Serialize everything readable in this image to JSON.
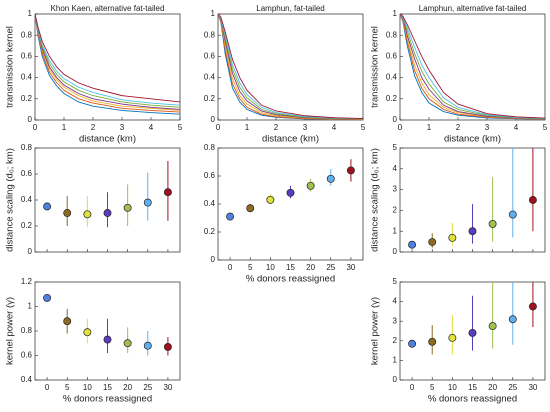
{
  "chart_data": [
    {
      "type": "line",
      "title": "Khon Kaen, alternative fat-tailed",
      "xlabel": "distance (km)",
      "ylabel": "transmission kernel",
      "x": [
        0,
        0.1,
        0.25,
        0.5,
        0.75,
        1,
        1.5,
        2,
        3,
        4,
        5
      ],
      "xlim": [
        0,
        5
      ],
      "xticks": [
        0,
        1,
        2,
        3,
        4,
        5
      ],
      "ylim": [
        0,
        1
      ],
      "yticks": [
        0,
        0.2,
        0.4,
        0.6,
        0.8,
        1
      ],
      "series": [
        {
          "color": "#0072bd",
          "values": [
            1,
            0.8,
            0.6,
            0.42,
            0.32,
            0.25,
            0.17,
            0.13,
            0.09,
            0.07,
            0.055
          ]
        },
        {
          "color": "#d95319",
          "values": [
            1,
            0.82,
            0.63,
            0.45,
            0.35,
            0.28,
            0.2,
            0.16,
            0.11,
            0.09,
            0.075
          ]
        },
        {
          "color": "#edb120",
          "values": [
            1,
            0.83,
            0.65,
            0.48,
            0.38,
            0.31,
            0.23,
            0.18,
            0.13,
            0.11,
            0.09
          ]
        },
        {
          "color": "#7e2f8e",
          "values": [
            1,
            0.84,
            0.67,
            0.5,
            0.4,
            0.33,
            0.25,
            0.2,
            0.15,
            0.12,
            0.1
          ]
        },
        {
          "color": "#77ac30",
          "values": [
            1,
            0.85,
            0.69,
            0.53,
            0.43,
            0.36,
            0.28,
            0.23,
            0.17,
            0.14,
            0.12
          ]
        },
        {
          "color": "#4dbeee",
          "values": [
            1,
            0.86,
            0.71,
            0.56,
            0.46,
            0.39,
            0.31,
            0.26,
            0.19,
            0.16,
            0.14
          ]
        },
        {
          "color": "#a2142f",
          "values": [
            1,
            0.88,
            0.74,
            0.6,
            0.5,
            0.43,
            0.35,
            0.3,
            0.23,
            0.2,
            0.17
          ]
        }
      ]
    },
    {
      "type": "line",
      "title": "Lamphun, fat-tailed",
      "xlabel": "distance (km)",
      "x": [
        0,
        0.1,
        0.25,
        0.5,
        0.75,
        1,
        1.5,
        2,
        3,
        4,
        5
      ],
      "xlim": [
        0,
        5
      ],
      "xticks": [
        0,
        1,
        2,
        3,
        4,
        5
      ],
      "ylim": [
        0,
        1
      ],
      "yticks": [
        0,
        0.2,
        0.4,
        0.6,
        0.8,
        1
      ],
      "series": [
        {
          "color": "#0072bd",
          "values": [
            1,
            0.92,
            0.62,
            0.3,
            0.17,
            0.1,
            0.045,
            0.025,
            0.01,
            0.005,
            0.003
          ]
        },
        {
          "color": "#d95319",
          "values": [
            1,
            0.93,
            0.66,
            0.34,
            0.2,
            0.12,
            0.055,
            0.03,
            0.013,
            0.007,
            0.004
          ]
        },
        {
          "color": "#edb120",
          "values": [
            1,
            0.94,
            0.7,
            0.39,
            0.23,
            0.15,
            0.07,
            0.04,
            0.017,
            0.01,
            0.006
          ]
        },
        {
          "color": "#7e2f8e",
          "values": [
            1,
            0.95,
            0.74,
            0.44,
            0.27,
            0.18,
            0.085,
            0.05,
            0.022,
            0.012,
            0.008
          ]
        },
        {
          "color": "#77ac30",
          "values": [
            1,
            0.96,
            0.77,
            0.48,
            0.31,
            0.21,
            0.1,
            0.06,
            0.027,
            0.015,
            0.01
          ]
        },
        {
          "color": "#4dbeee",
          "values": [
            1,
            0.96,
            0.8,
            0.52,
            0.35,
            0.24,
            0.12,
            0.07,
            0.032,
            0.018,
            0.012
          ]
        },
        {
          "color": "#a2142f",
          "values": [
            1,
            0.97,
            0.83,
            0.57,
            0.4,
            0.28,
            0.14,
            0.085,
            0.04,
            0.022,
            0.014
          ]
        }
      ]
    },
    {
      "type": "line",
      "title": "Lamphun, alternative fat-tailed",
      "xlabel": "distance (km)",
      "ylabel": "transmission kernel",
      "x": [
        0,
        0.1,
        0.25,
        0.5,
        0.75,
        1,
        1.5,
        2,
        3,
        4,
        5
      ],
      "xlim": [
        0,
        5
      ],
      "xticks": [
        0,
        1,
        2,
        3,
        4,
        5
      ],
      "ylim": [
        0,
        1
      ],
      "yticks": [
        0,
        0.2,
        0.4,
        0.6,
        0.8,
        1
      ],
      "series": [
        {
          "color": "#0072bd",
          "values": [
            1,
            0.93,
            0.7,
            0.42,
            0.26,
            0.16,
            0.08,
            0.045,
            0.02,
            0.012,
            0.008
          ]
        },
        {
          "color": "#d95319",
          "values": [
            1,
            0.94,
            0.74,
            0.47,
            0.3,
            0.2,
            0.1,
            0.055,
            0.025,
            0.014,
            0.009
          ]
        },
        {
          "color": "#edb120",
          "values": [
            1,
            0.95,
            0.77,
            0.52,
            0.35,
            0.24,
            0.12,
            0.07,
            0.03,
            0.016,
            0.01
          ]
        },
        {
          "color": "#7e2f8e",
          "values": [
            1,
            0.96,
            0.8,
            0.58,
            0.4,
            0.29,
            0.14,
            0.08,
            0.035,
            0.018,
            0.011
          ]
        },
        {
          "color": "#77ac30",
          "values": [
            1,
            0.97,
            0.84,
            0.63,
            0.46,
            0.34,
            0.17,
            0.1,
            0.043,
            0.022,
            0.013
          ]
        },
        {
          "color": "#4dbeee",
          "values": [
            1,
            0.97,
            0.87,
            0.69,
            0.52,
            0.4,
            0.21,
            0.12,
            0.05,
            0.026,
            0.015
          ]
        },
        {
          "color": "#a2142f",
          "values": [
            1,
            0.98,
            0.9,
            0.75,
            0.6,
            0.47,
            0.26,
            0.15,
            0.06,
            0.03,
            0.018
          ]
        }
      ]
    },
    {
      "type": "scatter",
      "ylabel": "distance scaling (d₀; km)",
      "xtick_labels": false,
      "x": [
        0,
        5,
        10,
        15,
        20,
        25,
        30
      ],
      "xlim": [
        -3,
        33
      ],
      "xticks": [
        0,
        5,
        10,
        15,
        20,
        25,
        30
      ],
      "ylim": [
        0,
        0.8
      ],
      "yticks": [
        0,
        0.2,
        0.4,
        0.6,
        0.8
      ],
      "colors": [
        "#4f81e0",
        "#8c6a20",
        "#e0e040",
        "#5a3cc0",
        "#a0c050",
        "#60b0f0",
        "#a01020"
      ],
      "values": [
        0.35,
        0.3,
        0.29,
        0.3,
        0.34,
        0.38,
        0.46
      ],
      "lower": [
        0.33,
        0.2,
        0.19,
        0.19,
        0.2,
        0.24,
        0.24
      ],
      "upper": [
        0.38,
        0.43,
        0.43,
        0.46,
        0.52,
        0.61,
        0.7
      ]
    },
    {
      "type": "scatter",
      "ylabel": "kernel power (γ)",
      "xlabel": "% donors reassigned",
      "x": [
        0,
        5,
        10,
        15,
        20,
        25,
        30
      ],
      "xlim": [
        -3,
        33
      ],
      "xticks": [
        0,
        5,
        10,
        15,
        20,
        25,
        30
      ],
      "ylim": [
        0.4,
        1.2
      ],
      "yticks": [
        0.4,
        0.6,
        0.8,
        1,
        1.2
      ],
      "colors": [
        "#4f81e0",
        "#8c6a20",
        "#e0e040",
        "#5a3cc0",
        "#a0c050",
        "#60b0f0",
        "#a01020"
      ],
      "values": [
        1.07,
        0.88,
        0.79,
        0.73,
        0.7,
        0.68,
        0.67
      ],
      "lower": [
        1.05,
        0.78,
        0.7,
        0.62,
        0.62,
        0.6,
        0.6
      ],
      "upper": [
        1.1,
        0.98,
        0.9,
        0.9,
        0.83,
        0.8,
        0.75
      ]
    },
    {
      "type": "scatter",
      "xlabel": "% donors reassigned",
      "x": [
        0,
        5,
        10,
        15,
        20,
        25,
        30
      ],
      "xlim": [
        -3,
        33
      ],
      "xticks": [
        0,
        5,
        10,
        15,
        20,
        25,
        30
      ],
      "ylim": [
        0,
        0.8
      ],
      "yticks": [
        0,
        0.2,
        0.4,
        0.6,
        0.8
      ],
      "colors": [
        "#4f81e0",
        "#8c6a20",
        "#e0e040",
        "#5a3cc0",
        "#a0c050",
        "#60b0f0",
        "#a01020"
      ],
      "values": [
        0.31,
        0.37,
        0.43,
        0.48,
        0.53,
        0.58,
        0.64
      ],
      "lower": [
        0.3,
        0.34,
        0.4,
        0.44,
        0.49,
        0.53,
        0.56
      ],
      "upper": [
        0.33,
        0.4,
        0.47,
        0.53,
        0.58,
        0.65,
        0.72
      ]
    },
    {
      "type": "scatter",
      "ylabel": "distance scaling (d₀; km)",
      "xtick_labels": false,
      "x": [
        0,
        5,
        10,
        15,
        20,
        25,
        30
      ],
      "xlim": [
        -3,
        33
      ],
      "xticks": [
        0,
        5,
        10,
        15,
        20,
        25,
        30
      ],
      "ylim": [
        0,
        5
      ],
      "yticks": [
        0,
        1,
        2,
        3,
        4,
        5
      ],
      "colors": [
        "#4f81e0",
        "#8c6a20",
        "#e0e040",
        "#5a3cc0",
        "#a0c050",
        "#60b0f0",
        "#a01020"
      ],
      "values": [
        0.35,
        0.48,
        0.68,
        1,
        1.35,
        1.8,
        2.5
      ],
      "lower": [
        0.3,
        0.2,
        0.3,
        0.4,
        0.5,
        0.7,
        1
      ],
      "upper": [
        0.45,
        0.9,
        1.4,
        2.3,
        3.6,
        5,
        5
      ]
    },
    {
      "type": "scatter",
      "ylabel": "kernel power (γ)",
      "xlabel": "% donors reassigned",
      "x": [
        0,
        5,
        10,
        15,
        20,
        25,
        30
      ],
      "xlim": [
        -3,
        33
      ],
      "xticks": [
        0,
        5,
        10,
        15,
        20,
        25,
        30
      ],
      "ylim": [
        0,
        5
      ],
      "yticks": [
        0,
        1,
        2,
        3,
        4,
        5
      ],
      "colors": [
        "#4f81e0",
        "#8c6a20",
        "#e0e040",
        "#5a3cc0",
        "#a0c050",
        "#60b0f0",
        "#a01020"
      ],
      "values": [
        1.85,
        1.95,
        2.15,
        2.4,
        2.75,
        3.1,
        3.75
      ],
      "lower": [
        1.75,
        1.3,
        1.3,
        1.5,
        1.6,
        1.8,
        2.7
      ],
      "upper": [
        1.95,
        2.8,
        3.3,
        4.3,
        5,
        5,
        5
      ]
    }
  ]
}
